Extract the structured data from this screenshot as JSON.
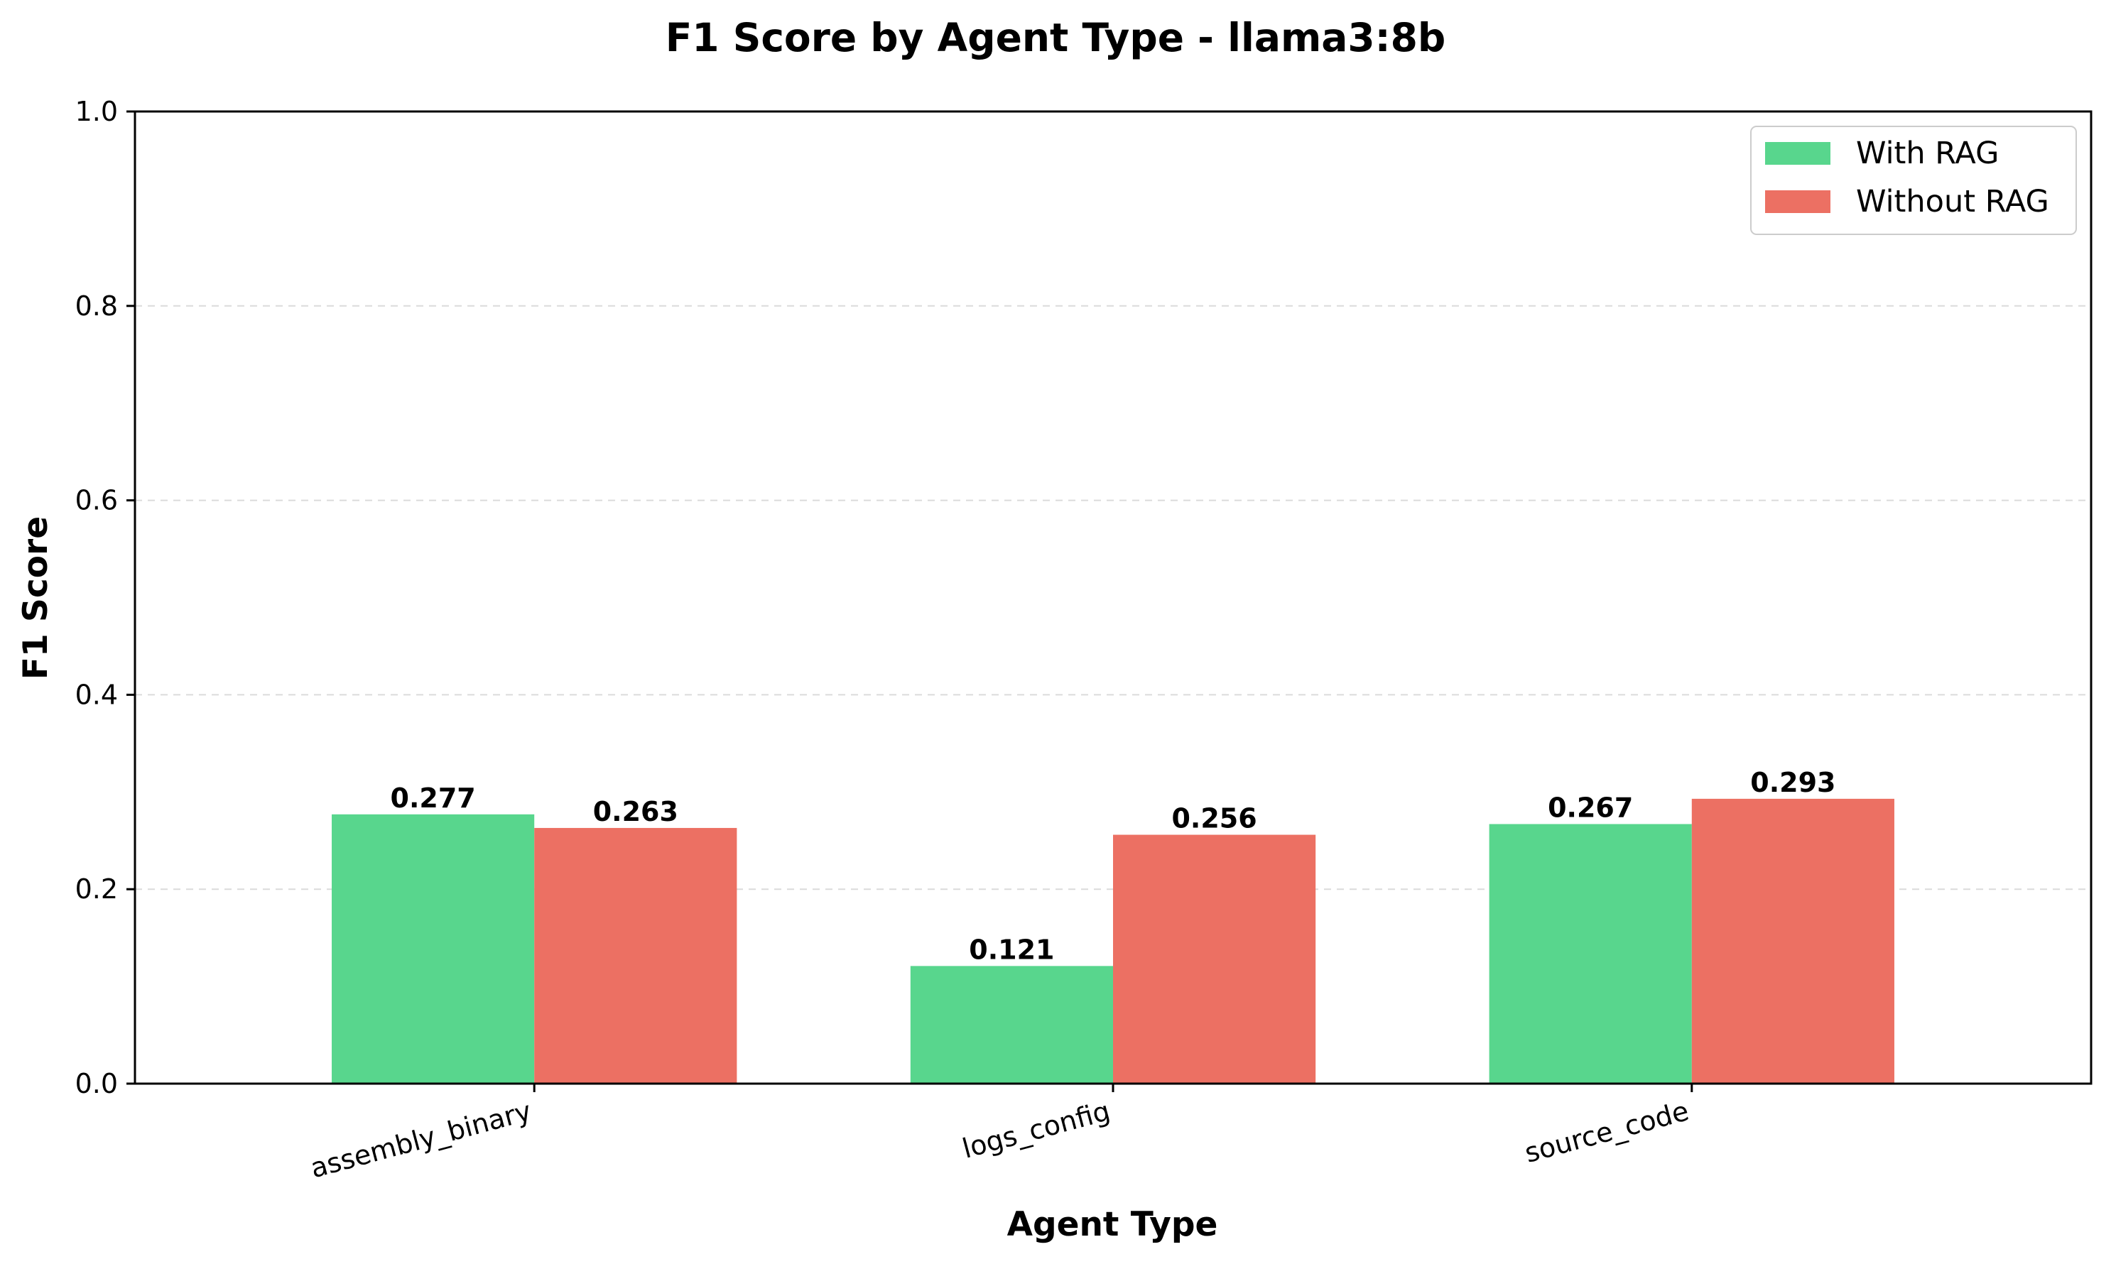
{
  "chart_data": {
    "type": "bar",
    "title": "F1 Score by Agent Type - llama3:8b",
    "xlabel": "Agent Type",
    "ylabel": "F1 Score",
    "categories": [
      "assembly_binary",
      "logs_config",
      "source_code"
    ],
    "series": [
      {
        "name": "With RAG",
        "values": [
          0.277,
          0.121,
          0.267
        ],
        "labels": [
          "0.277",
          "0.121",
          "0.267"
        ],
        "color": "#58d68d"
      },
      {
        "name": "Without RAG",
        "values": [
          0.263,
          0.256,
          0.293
        ],
        "labels": [
          "0.263",
          "0.256",
          "0.293"
        ],
        "color": "#ec7063"
      }
    ],
    "ylim": [
      0,
      1.0
    ],
    "yticks": [
      "0.0",
      "0.2",
      "0.4",
      "0.6",
      "0.8",
      "1.0"
    ],
    "grid": "y-dashed",
    "legend": "top-right"
  }
}
